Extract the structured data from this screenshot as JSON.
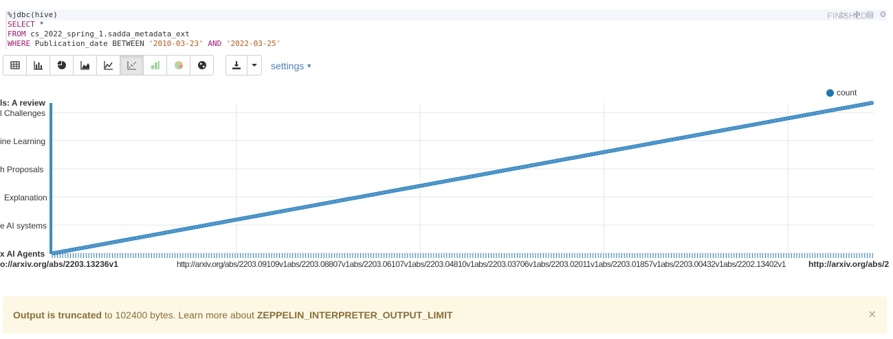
{
  "paragraph": {
    "code_lines": [
      "%jdbc(hive)",
      "SELECT *",
      "FROM cs_2022_spring_1.sadda_metadata_ext",
      "WHERE Publication_date BETWEEN '2010-03-23' AND '2022-03-25'"
    ],
    "status": "FINISHED",
    "icons": [
      "run-icon",
      "fullscreen-icon",
      "book-icon",
      "gear-icon"
    ]
  },
  "toolbar": {
    "chart_buttons": [
      {
        "name": "table-view-button",
        "icon": "table-icon"
      },
      {
        "name": "bar-chart-button",
        "icon": "bar-chart-icon"
      },
      {
        "name": "pie-chart-button",
        "icon": "pie-chart-icon"
      },
      {
        "name": "area-chart-button",
        "icon": "area-chart-icon"
      },
      {
        "name": "line-chart-button",
        "icon": "line-chart-icon"
      },
      {
        "name": "scatter-chart-button",
        "icon": "scatter-chart-icon",
        "active": true
      },
      {
        "name": "bar-green-chart-button",
        "icon": "bar-green-icon"
      },
      {
        "name": "pie-green-chart-button",
        "icon": "pie-green-icon"
      },
      {
        "name": "globe-chart-button",
        "icon": "globe-icon"
      }
    ],
    "settings_label": "settings"
  },
  "chart_data": {
    "type": "scatter",
    "series": [
      {
        "name": "count"
      }
    ],
    "legend": "top-right",
    "grid": true,
    "y_tick_labels": [
      "ls: A review",
      "l Challenges",
      "ine Learning",
      "h Proposals",
      "Explanation",
      "e AI systems",
      "x AI Agents"
    ],
    "x_tick_labels": [
      "o://arxiv.org/abs/2203.13236v1",
      "http://arxiv.org/abs/2203.09109v1abs/2203.08807v1abs/2203.06107v1abs/2203.04810v1abs/2203.03706v1abs/2203.02011v1abs/2203.01857v1abs/2203.00432v1abs/2202.13402v1",
      "http://arxiv.org/abs/2"
    ],
    "points_count": 316
  },
  "banner": {
    "bold_prefix": "Output is truncated",
    "middle": " to 102400 bytes. Learn more about ",
    "bold_suffix": "ZEPPELIN_INTERPRETER_OUTPUT_LIMIT",
    "close": "×"
  },
  "colors": {
    "series": "#1f77b4",
    "link": "#4a7fbd",
    "banner_bg": "#fcf8e3",
    "banner_text": "#8a6d3b"
  }
}
